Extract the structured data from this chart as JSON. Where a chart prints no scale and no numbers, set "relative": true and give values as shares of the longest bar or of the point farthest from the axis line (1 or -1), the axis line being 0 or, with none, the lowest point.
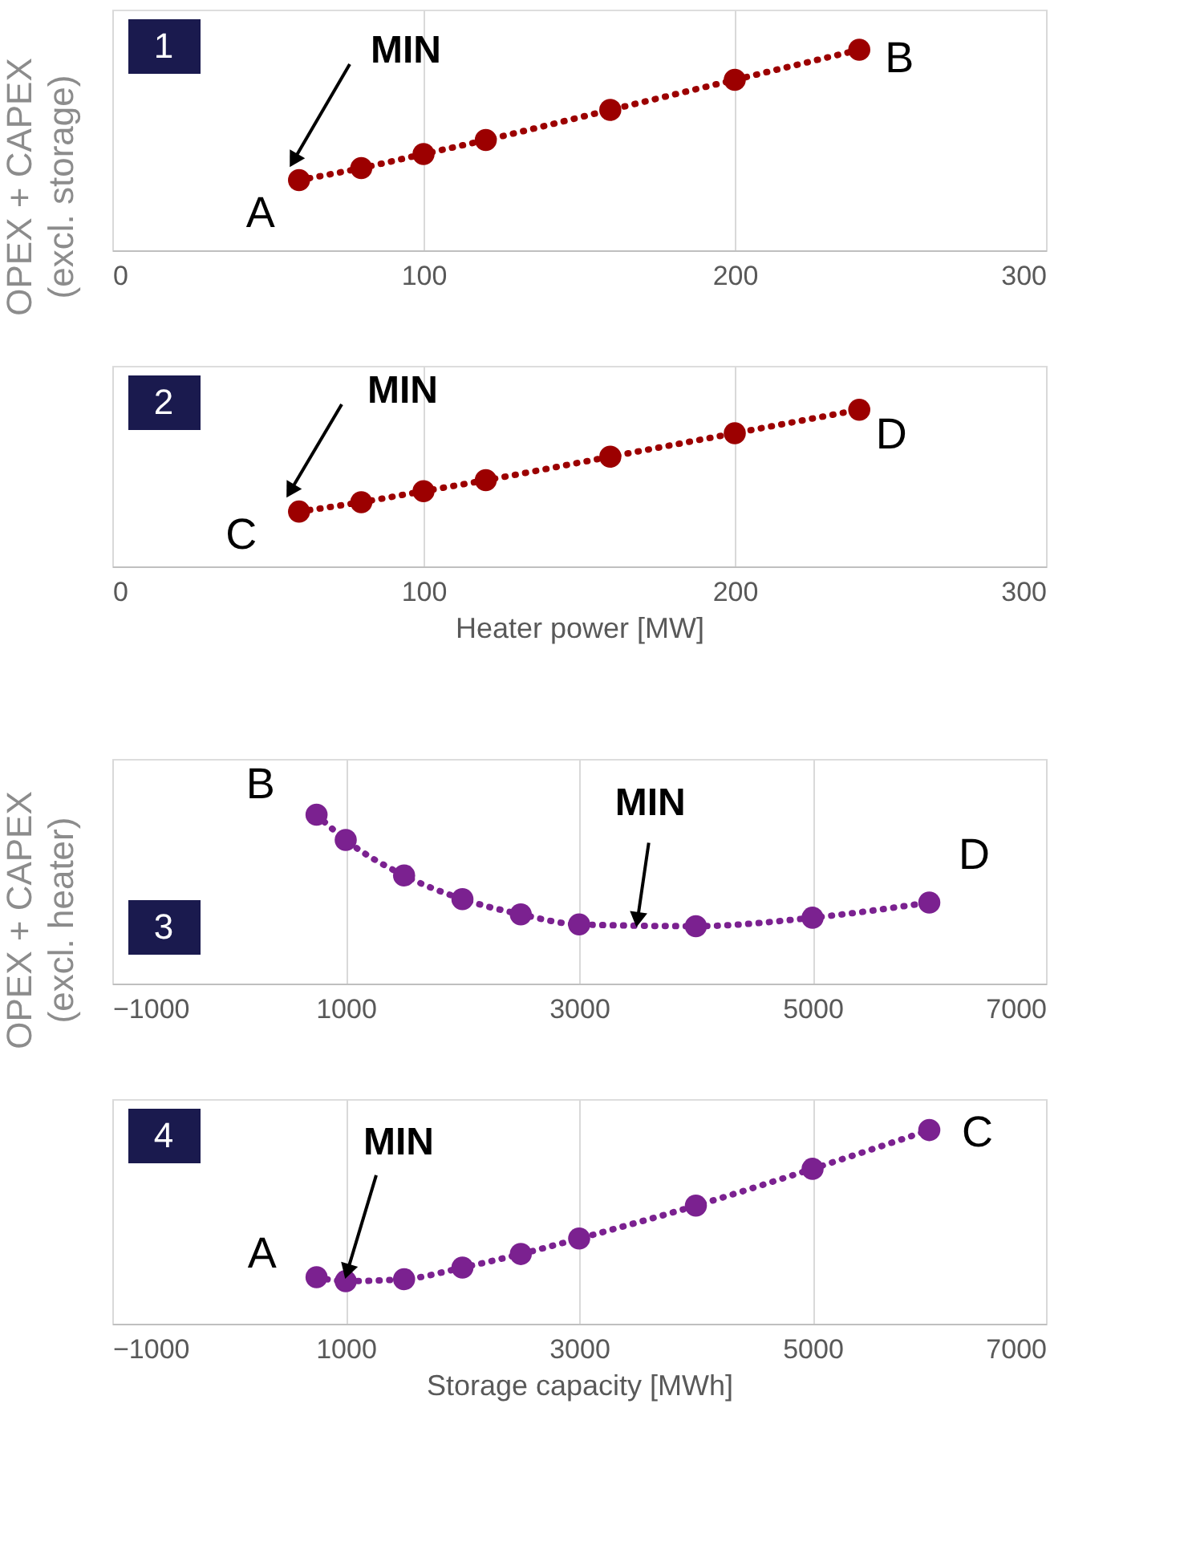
{
  "chart_data": [
    {
      "type": "line",
      "relative": true,
      "ylabel": "OPEX + CAPEX\n(excl. storage)",
      "x": [
        60,
        80,
        100,
        120,
        160,
        200,
        240
      ],
      "xlim": [
        0,
        300
      ],
      "xticks": [
        0,
        100,
        200,
        300
      ],
      "grid": "x",
      "marker": "circle",
      "line_style": "dotted",
      "series": [
        {
          "color": "#9c0000",
          "values": [
            0.35,
            0.41,
            0.48,
            0.55,
            0.7,
            0.85,
            1
          ]
        }
      ],
      "annotations": [
        "1",
        "MIN",
        {
          "text": "A",
          "x": 60,
          "y": 0.35
        },
        {
          "text": "B",
          "x": 240,
          "y": 1
        }
      ]
    },
    {
      "type": "line",
      "relative": true,
      "xlabel": "Heater power [MW]",
      "x": [
        60,
        80,
        100,
        120,
        160,
        200,
        240
      ],
      "xlim": [
        0,
        300
      ],
      "xticks": [
        0,
        100,
        200,
        300
      ],
      "grid": "x",
      "marker": "circle",
      "line_style": "dotted",
      "series": [
        {
          "color": "#9c0000",
          "values": [
            0.35,
            0.41,
            0.48,
            0.55,
            0.7,
            0.85,
            1
          ]
        }
      ],
      "annotations": [
        "2",
        "MIN",
        {
          "text": "C",
          "x": 60,
          "y": 0.35
        },
        {
          "text": "D",
          "x": 240,
          "y": 1
        }
      ]
    },
    {
      "type": "line",
      "relative": true,
      "ylabel": "OPEX + CAPEX\n(excl. heater)",
      "x": [
        750,
        1000,
        1500,
        2000,
        2500,
        3000,
        4000,
        5000,
        6000
      ],
      "xlim": [
        -1000,
        7000
      ],
      "xticks": [
        -1000,
        1000,
        3000,
        5000,
        7000
      ],
      "grid": "x",
      "marker": "circle",
      "line_style": "dotted",
      "series": [
        {
          "color": "#7b2190",
          "values": [
            1,
            0.85,
            0.64,
            0.5,
            0.41,
            0.35,
            0.34,
            0.39,
            0.48
          ]
        }
      ],
      "annotations": [
        "3",
        {
          "text": "MIN",
          "x": 3500,
          "y": 0.34
        },
        {
          "text": "B",
          "x": 750,
          "y": 1
        },
        {
          "text": "D",
          "x": 6000,
          "y": 0.48
        }
      ]
    },
    {
      "type": "line",
      "relative": true,
      "xlabel": "Storage capacity [MWh]",
      "x": [
        750,
        1000,
        1500,
        2000,
        2500,
        3000,
        4000,
        5000,
        6000
      ],
      "xlim": [
        -1000,
        7000
      ],
      "xticks": [
        -1000,
        1000,
        3000,
        5000,
        7000
      ],
      "grid": "x",
      "marker": "circle",
      "line_style": "dotted",
      "series": [
        {
          "color": "#7b2190",
          "values": [
            0.24,
            0.22,
            0.23,
            0.29,
            0.36,
            0.44,
            0.61,
            0.8,
            1
          ]
        }
      ],
      "annotations": [
        "4",
        {
          "text": "MIN",
          "x": 1000,
          "y": 0.22
        },
        {
          "text": "A",
          "x": 750,
          "y": 0.24
        },
        {
          "text": "C",
          "x": 6000,
          "y": 1
        }
      ]
    }
  ]
}
